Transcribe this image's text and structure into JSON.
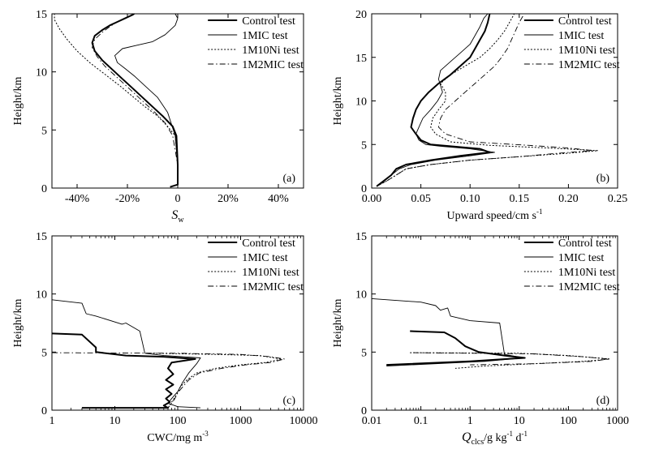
{
  "chart_data": [
    {
      "type": "line",
      "panel_label": "(a)",
      "xlabel": "S",
      "xlabel_sub": "w",
      "ylabel": "Height/km",
      "xlim": [
        -50,
        50
      ],
      "ylim": [
        0,
        15
      ],
      "xticks": [
        -40,
        -20,
        0,
        20,
        40
      ],
      "xtick_labels": [
        "-40%",
        "-20%",
        "0",
        "20%",
        "40%"
      ],
      "yticks": [
        0,
        5,
        10,
        15
      ],
      "ytick_labels": [
        "0",
        "5",
        "10",
        "15"
      ],
      "legend_position": "top-right",
      "series": [
        {
          "name": "Control test",
          "style": "thick",
          "x": [
            -3,
            0,
            0,
            -0.5,
            -2,
            -6,
            -10,
            -14,
            -18,
            -22,
            -26,
            -30,
            -33,
            -34,
            -33,
            -30,
            -27,
            -24,
            -21,
            -18,
            -16
          ],
          "y": [
            0.1,
            0.3,
            2,
            4.5,
            5.3,
            6.2,
            7,
            7.8,
            8.6,
            9.4,
            10.2,
            11,
            11.8,
            12.5,
            13.1,
            13.6,
            14,
            14.3,
            14.6,
            14.9,
            15.2
          ]
        },
        {
          "name": "1MIC test",
          "style": "thin",
          "x": [
            -3,
            0,
            0,
            -1,
            -4,
            -8,
            -13,
            -17,
            -21,
            -24,
            -25,
            -22,
            -16,
            -10,
            -5,
            -1,
            0,
            -1,
            -4
          ],
          "y": [
            0.1,
            0.3,
            2,
            4.5,
            6.5,
            7.8,
            8.8,
            9.6,
            10.3,
            10.8,
            11.4,
            12,
            12.3,
            12.6,
            13.2,
            14,
            14.6,
            15,
            15.3
          ]
        },
        {
          "name": "1M10Ni test",
          "style": "dotted",
          "x": [
            -3,
            0,
            0,
            -1,
            -4,
            -8,
            -13,
            -18,
            -23,
            -29,
            -35,
            -40,
            -44,
            -47,
            -49,
            -49
          ],
          "y": [
            0.1,
            0.3,
            2,
            4.5,
            5.3,
            6.2,
            7,
            7.9,
            8.8,
            9.8,
            10.8,
            11.8,
            12.8,
            13.7,
            14.5,
            15.2
          ]
        },
        {
          "name": "1M2MIC test",
          "style": "dashdot",
          "x": [
            -3,
            0,
            0,
            -2,
            -5,
            -9,
            -13,
            -17,
            -21,
            -25,
            -29,
            -32,
            -34,
            -33,
            -30,
            -27,
            -24,
            -21,
            -18,
            -15,
            -12
          ],
          "y": [
            0.1,
            0.3,
            2,
            4.5,
            5.6,
            6.5,
            7.3,
            8.1,
            8.9,
            9.7,
            10.5,
            11.3,
            12.1,
            12.8,
            13.4,
            13.9,
            14.3,
            14.6,
            14.9,
            15.1,
            15.3
          ]
        }
      ]
    },
    {
      "type": "line",
      "panel_label": "(b)",
      "xlabel": "Upward speed/cm s",
      "xlabel_sup": "-1",
      "ylabel": "Height/km",
      "xlim": [
        0,
        0.25
      ],
      "ylim": [
        0,
        20
      ],
      "xticks": [
        0,
        0.05,
        0.1,
        0.15,
        0.2,
        0.25
      ],
      "xtick_labels": [
        "0.00",
        "0.05",
        "0.10",
        "0.15",
        "0.20",
        "0.25"
      ],
      "yticks": [
        0,
        5,
        10,
        15,
        20
      ],
      "ytick_labels": [
        "0",
        "5",
        "10",
        "15",
        "20"
      ],
      "legend_position": "top-right",
      "series": [
        {
          "name": "Control test",
          "style": "thick",
          "x": [
            0.005,
            0.012,
            0.02,
            0.025,
            0.035,
            0.06,
            0.09,
            0.12,
            0.11,
            0.08,
            0.06,
            0.05,
            0.045,
            0.04,
            0.042,
            0.045,
            0.05,
            0.058,
            0.068,
            0.08,
            0.09,
            0.1,
            0.105,
            0.11,
            0.115,
            0.118,
            0.12
          ],
          "y": [
            0.2,
            0.8,
            1.5,
            2.2,
            2.7,
            3.2,
            3.7,
            4.1,
            4.5,
            4.8,
            5,
            5.5,
            6.2,
            7,
            8,
            9,
            10,
            11,
            12,
            13,
            14,
            15,
            16,
            17,
            18,
            19,
            20
          ]
        },
        {
          "name": "1MIC test",
          "style": "thin",
          "x": [
            0.005,
            0.012,
            0.02,
            0.028,
            0.04,
            0.065,
            0.1,
            0.125,
            0.1,
            0.07,
            0.055,
            0.048,
            0.045,
            0.048,
            0.052,
            0.06,
            0.067,
            0.072,
            0.068,
            0.07,
            0.08,
            0.09,
            0.1,
            0.105,
            0.11,
            0.114,
            0.118
          ],
          "y": [
            0.2,
            0.8,
            1.5,
            2.2,
            2.7,
            3.2,
            3.7,
            4.1,
            4.5,
            4.8,
            5,
            5.5,
            6.2,
            7,
            8,
            9,
            10,
            11,
            12.5,
            13.5,
            14.5,
            15.5,
            16.5,
            17.5,
            18.5,
            19.5,
            20
          ]
        },
        {
          "name": "1M10Ni test",
          "style": "dotted",
          "x": [
            0.005,
            0.015,
            0.025,
            0.035,
            0.06,
            0.1,
            0.15,
            0.2,
            0.23,
            0.18,
            0.12,
            0.08,
            0.065,
            0.06,
            0.062,
            0.068,
            0.075,
            0.075,
            0.07,
            0.08,
            0.095,
            0.11,
            0.12,
            0.128,
            0.135,
            0.14,
            0.145
          ],
          "y": [
            0.2,
            0.8,
            1.5,
            2.2,
            2.7,
            3.2,
            3.6,
            4,
            4.3,
            4.6,
            4.9,
            5.3,
            6.2,
            7,
            8,
            9,
            10,
            11,
            12,
            13,
            14,
            15,
            16,
            17,
            18,
            19,
            20
          ]
        },
        {
          "name": "1M2MIC test",
          "style": "dashdot",
          "x": [
            0.005,
            0.015,
            0.025,
            0.035,
            0.06,
            0.1,
            0.15,
            0.19,
            0.225,
            0.2,
            0.16,
            0.1,
            0.075,
            0.068,
            0.07,
            0.075,
            0.085,
            0.095,
            0.105,
            0.115,
            0.125,
            0.132,
            0.138,
            0.142,
            0.146,
            0.15,
            0.155
          ],
          "y": [
            0.2,
            0.8,
            1.5,
            2.2,
            2.7,
            3.2,
            3.6,
            4,
            4.3,
            4.6,
            4.9,
            5.3,
            6.2,
            7,
            8,
            9,
            10,
            11,
            12,
            13,
            14,
            15,
            16,
            17,
            18,
            19,
            20
          ]
        }
      ]
    },
    {
      "type": "line",
      "panel_label": "(c)",
      "xlabel": "CWC/mg m",
      "xlabel_sup": "-3",
      "ylabel": "Height/km",
      "xscale": "log",
      "xlim": [
        1,
        10000
      ],
      "ylim": [
        0,
        15
      ],
      "xticks": [
        1,
        10,
        100,
        1000,
        10000
      ],
      "xtick_labels": [
        "1",
        "10",
        "100",
        "1000",
        "10000"
      ],
      "yticks": [
        0,
        5,
        10,
        15
      ],
      "ytick_labels": [
        "0",
        "5",
        "10",
        "15"
      ],
      "legend_position": "top-right",
      "series": [
        {
          "name": "Control test",
          "style": "thick",
          "x": [
            1,
            3,
            5,
            5,
            15,
            60,
            190,
            80,
            70,
            85,
            65,
            85,
            65,
            80,
            65,
            75,
            60,
            70,
            3
          ],
          "y": [
            6.6,
            6.5,
            5.4,
            5,
            4.7,
            4.6,
            4.4,
            4.1,
            3.6,
            3.1,
            2.6,
            2.2,
            1.8,
            1.4,
            1,
            0.7,
            0.4,
            0.2,
            0.2
          ]
        },
        {
          "name": "1MIC test",
          "style": "thin",
          "x": [
            1,
            3,
            3.5,
            5,
            13,
            15,
            25,
            30,
            60,
            230,
            200,
            150,
            120,
            100,
            80,
            70,
            100,
            230
          ],
          "y": [
            9.5,
            9.2,
            8.3,
            8.1,
            7.4,
            7.5,
            6.8,
            4.9,
            4.7,
            4.5,
            4.0,
            3.2,
            2.4,
            1.6,
            1.0,
            0.6,
            0.3,
            0.2
          ]
        },
        {
          "name": "1M10Ni test",
          "style": "dotted",
          "x": [
            40,
            400,
            2000,
            4500,
            2500,
            1000,
            400,
            200,
            140,
            110,
            100,
            90,
            80,
            75,
            70
          ],
          "y": [
            4.9,
            4.8,
            4.7,
            4.4,
            4.1,
            3.9,
            3.6,
            3.2,
            2.6,
            2.0,
            1.5,
            1.1,
            0.7,
            0.4,
            0.2
          ]
        },
        {
          "name": "1M2MIC test",
          "style": "dashdot",
          "x": [
            1,
            100,
            1000,
            3000,
            5000,
            3000,
            1200,
            500,
            220,
            150,
            120,
            100,
            90,
            80,
            70
          ],
          "y": [
            4.95,
            4.9,
            4.8,
            4.6,
            4.4,
            4.1,
            3.9,
            3.6,
            3.2,
            2.6,
            2.0,
            1.5,
            1.0,
            0.6,
            0.2
          ]
        }
      ]
    },
    {
      "type": "line",
      "panel_label": "(d)",
      "xlabel": "Q",
      "xlabel_sub": "clcs",
      "xlabel_rest": "/g kg",
      "xlabel_sup1": "-1",
      "xlabel_mid": " d",
      "xlabel_sup2": "-1",
      "ylabel": "Height/km",
      "xscale": "log",
      "xlim": [
        0.01,
        1000
      ],
      "ylim": [
        0,
        15
      ],
      "xticks": [
        0.01,
        0.1,
        1,
        10,
        100,
        1000
      ],
      "xtick_labels": [
        "0.01",
        "0.1",
        "1",
        "10",
        "100",
        "1000"
      ],
      "yticks": [
        0,
        5,
        10,
        15
      ],
      "ytick_labels": [
        "0",
        "5",
        "10",
        "15"
      ],
      "legend_position": "top-right",
      "series": [
        {
          "name": "Control test",
          "style": "thick",
          "x": [
            0.06,
            0.3,
            0.5,
            0.8,
            1.5,
            5,
            13,
            1,
            0.02
          ],
          "y": [
            6.8,
            6.7,
            6.2,
            5.5,
            5.0,
            4.7,
            4.5,
            4.2,
            3.9
          ]
        },
        {
          "name": "1MIC test",
          "style": "thin",
          "x": [
            0.01,
            0.1,
            0.2,
            0.25,
            0.35,
            0.4,
            1,
            4,
            5,
            12,
            2,
            0.02
          ],
          "y": [
            9.6,
            9.3,
            9.0,
            8.6,
            8.8,
            8.1,
            7.7,
            7.5,
            4.8,
            4.5,
            4.2,
            3.8
          ]
        },
        {
          "name": "1M10Ni test",
          "style": "dotted",
          "x": [
            0.06,
            10,
            100,
            700,
            200,
            20,
            2,
            0.5
          ],
          "y": [
            4.95,
            4.9,
            4.7,
            4.4,
            4.2,
            4.0,
            3.8,
            3.6
          ]
        },
        {
          "name": "1M2MIC test",
          "style": "dashdot",
          "x": [
            0.07,
            20,
            200,
            650,
            300,
            20,
            1
          ],
          "y": [
            4.95,
            4.85,
            4.6,
            4.4,
            4.2,
            4.0,
            3.9
          ]
        }
      ]
    }
  ]
}
